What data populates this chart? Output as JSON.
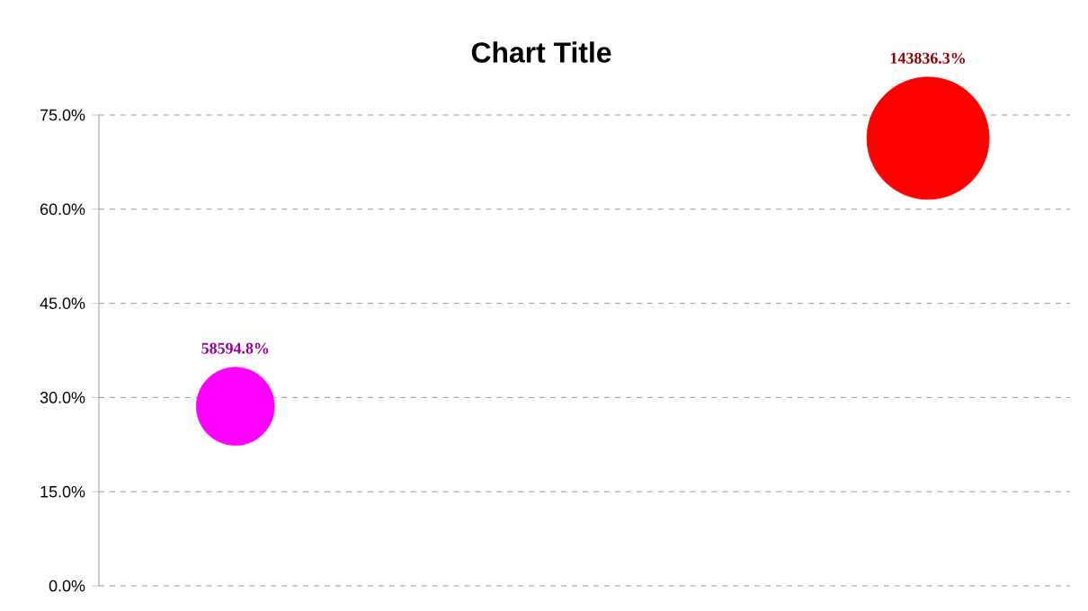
{
  "chart_data": {
    "type": "bubble",
    "title": "Chart Title",
    "categories": [
      null,
      null
    ],
    "values": [
      28.6,
      71.3
    ],
    "sizes": [
      0.407,
      1
    ],
    "colors": [
      "#ff00ff",
      "#ff0000"
    ],
    "annotations": [
      "58594.8%",
      "143836.3%"
    ],
    "ylim": [
      0,
      75
    ],
    "yticks": [
      {
        "value": 0,
        "label": "0.0%"
      },
      {
        "value": 15,
        "label": "15.0%"
      },
      {
        "value": 30,
        "label": "30.0%"
      },
      {
        "value": 45,
        "label": "45.0%"
      },
      {
        "value": 60,
        "label": "60.0%"
      },
      {
        "value": 75,
        "label": "75.0%"
      }
    ],
    "grid": "y"
  }
}
